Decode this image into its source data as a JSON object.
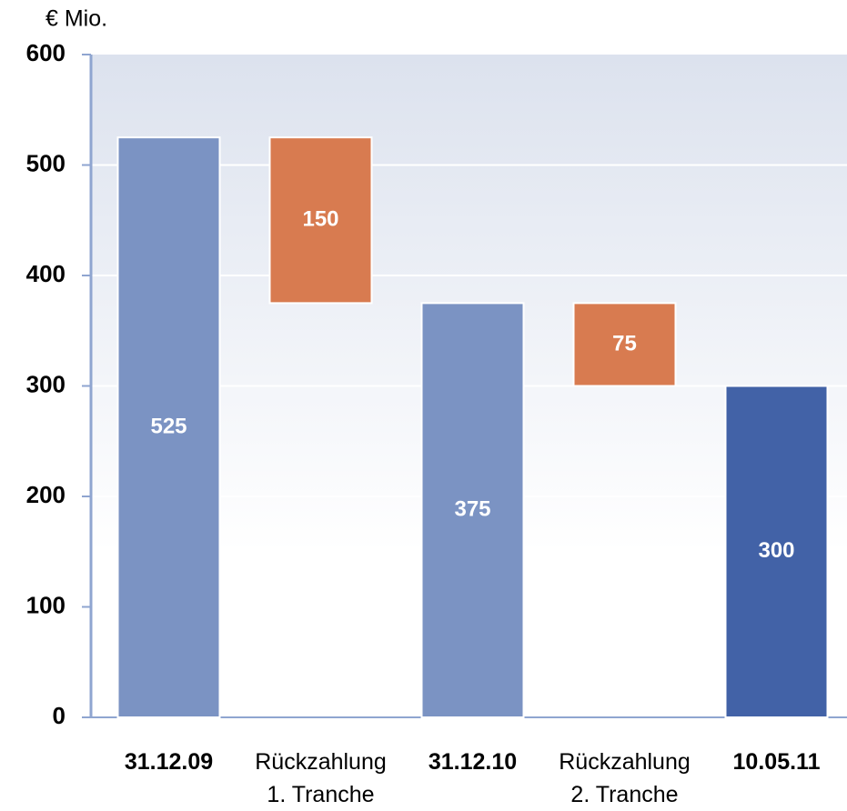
{
  "chart_data": {
    "type": "waterfall",
    "y_label": "€ Mio.",
    "categories": [
      "31.12.09",
      "Rückzahlung 1. Tranche",
      "31.12.10",
      "Rückzahlung 2. Tranche",
      "10.05.11"
    ],
    "measures": [
      "absolute",
      "relative",
      "absolute",
      "relative",
      "absolute"
    ],
    "values": [
      525,
      -150,
      375,
      -75,
      300
    ],
    "value_labels": [
      "525",
      "150",
      "375",
      "75",
      "300"
    ],
    "colors": [
      "#7b93c3",
      "#d87b50",
      "#7b93c3",
      "#d87b50",
      "#4262a7"
    ],
    "ylim": [
      0,
      600
    ],
    "yticks": [
      0,
      100,
      200,
      300,
      400,
      500,
      600
    ],
    "grid": true
  }
}
